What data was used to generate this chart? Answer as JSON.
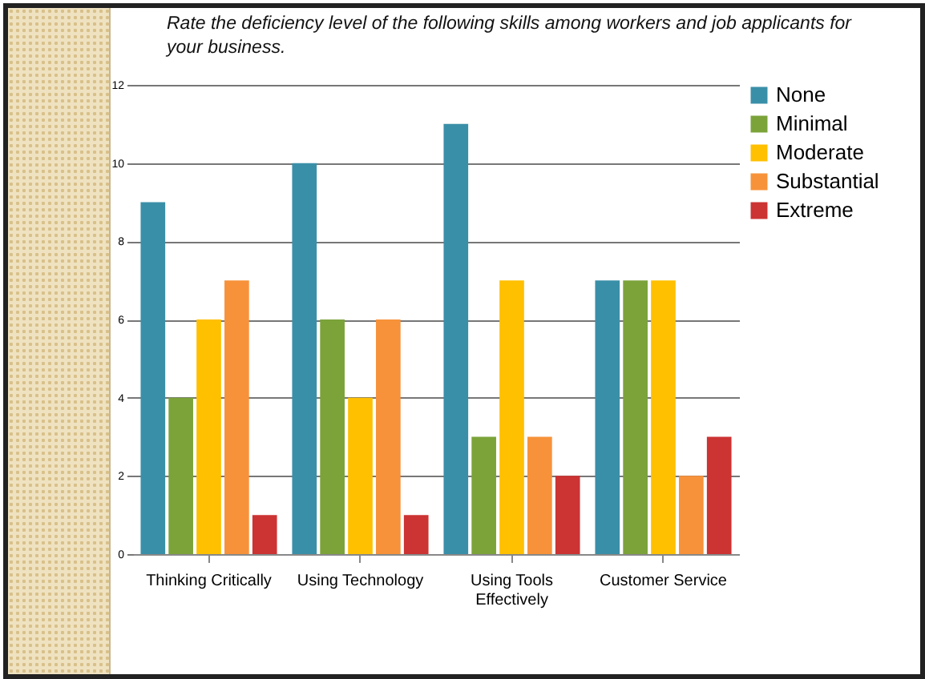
{
  "chart_data": {
    "type": "bar",
    "title": "Rate the deficiency level of the following skills among workers and job applicants for your business.",
    "categories": [
      "Thinking Critically",
      "Using Technology",
      "Using Tools Effectively",
      "Customer Service"
    ],
    "series": [
      {
        "name": "None",
        "color": "#3a8fa8",
        "values": [
          9,
          10,
          11,
          7
        ]
      },
      {
        "name": "Minimal",
        "color": "#7ba33a",
        "values": [
          4,
          6,
          3,
          7
        ]
      },
      {
        "name": "Moderate",
        "color": "#ffc000",
        "values": [
          6,
          4,
          7,
          7
        ]
      },
      {
        "name": "Substantial",
        "color": "#f7923a",
        "values": [
          7,
          6,
          3,
          2
        ]
      },
      {
        "name": "Extreme",
        "color": "#cc3333",
        "values": [
          1,
          1,
          2,
          3
        ]
      }
    ],
    "ylim": [
      0,
      12
    ],
    "yticks": [
      0,
      2,
      4,
      6,
      8,
      10,
      12
    ],
    "grid": "y",
    "legend": "right"
  }
}
